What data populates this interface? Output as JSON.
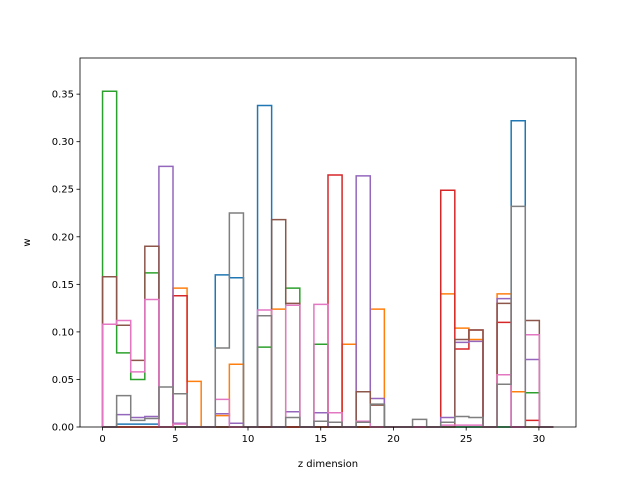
{
  "chart_data": {
    "type": "step-histogram",
    "xlabel": "z dimension",
    "ylabel": "w",
    "xlim": [
      -1.55,
      32.55
    ],
    "ylim": [
      0,
      0.388
    ],
    "x_ticks": [
      0,
      5,
      10,
      15,
      20,
      25,
      30
    ],
    "y_ticks": [
      0.0,
      0.05,
      0.1,
      0.15,
      0.2,
      0.25,
      0.3,
      0.35
    ],
    "y_tick_labels": [
      "0.00",
      "0.05",
      "0.10",
      "0.15",
      "0.20",
      "0.25",
      "0.30",
      "0.35"
    ],
    "bins": 32,
    "grid": false,
    "series": [
      {
        "color": "#1f77b4",
        "values": [
          0,
          0.003,
          0.003,
          0.003,
          0,
          0,
          0,
          0,
          0.16,
          0.157,
          0,
          0.338,
          0,
          0,
          0,
          0,
          0,
          0,
          0,
          0,
          0,
          0,
          0,
          0,
          0,
          0,
          0,
          0,
          0,
          0.322,
          0,
          0
        ]
      },
      {
        "color": "#ff7f0e",
        "values": [
          0,
          0,
          0,
          0,
          0,
          0.146,
          0.048,
          0,
          0.012,
          0.066,
          0,
          0,
          0.124,
          0,
          0,
          0,
          0,
          0.087,
          0,
          0.124,
          0,
          0,
          0,
          0,
          0.14,
          0.104,
          0.092,
          0,
          0.14,
          0.037,
          0,
          0
        ]
      },
      {
        "color": "#2ca02c",
        "values": [
          0.353,
          0.078,
          0.05,
          0.162,
          0,
          0,
          0,
          0,
          0,
          0,
          0,
          0.084,
          0,
          0.146,
          0,
          0.087,
          0,
          0,
          0,
          0,
          0,
          0,
          0,
          0,
          0,
          0,
          0,
          0,
          0,
          0,
          0.036,
          0
        ]
      },
      {
        "color": "#d62728",
        "values": [
          0,
          0,
          0,
          0,
          0,
          0.138,
          0,
          0,
          0,
          0,
          0,
          0,
          0,
          0,
          0,
          0,
          0.265,
          0,
          0,
          0,
          0,
          0,
          0,
          0,
          0.249,
          0.082,
          0.102,
          0,
          0.11,
          0,
          0.007,
          0
        ]
      },
      {
        "color": "#9467bd",
        "values": [
          0,
          0.013,
          0.01,
          0.011,
          0.274,
          0.004,
          0,
          0,
          0.014,
          0.004,
          0,
          0,
          0,
          0.016,
          0,
          0.015,
          0,
          0,
          0.264,
          0.03,
          0,
          0,
          0,
          0,
          0.01,
          0.089,
          0.09,
          0,
          0.135,
          0,
          0.071,
          0
        ]
      },
      {
        "color": "#8c564b",
        "values": [
          0.158,
          0.107,
          0.07,
          0.19,
          0,
          0,
          0,
          0,
          0,
          0,
          0,
          0,
          0.218,
          0.13,
          0,
          0,
          0,
          0,
          0.037,
          0.023,
          0,
          0,
          0,
          0,
          0,
          0.092,
          0.102,
          0,
          0.13,
          0,
          0.112,
          0
        ]
      },
      {
        "color": "#e377c2",
        "values": [
          0.108,
          0.112,
          0.058,
          0.134,
          0,
          0.003,
          0,
          0,
          0.029,
          0,
          0,
          0.123,
          0,
          0.128,
          0,
          0.129,
          0.015,
          0,
          0.006,
          0,
          0,
          0,
          0,
          0,
          0.002,
          0.002,
          0.002,
          0,
          0.055,
          0,
          0.097,
          0
        ]
      },
      {
        "color": "#7f7f7f",
        "values": [
          0,
          0.033,
          0.007,
          0.009,
          0.042,
          0.035,
          0,
          0,
          0.083,
          0.225,
          0,
          0.117,
          0,
          0.01,
          0,
          0.006,
          0.005,
          0,
          0.005,
          0.024,
          0,
          0,
          0.008,
          0,
          0.005,
          0.011,
          0.01,
          0,
          0.045,
          0.232,
          0,
          0
        ]
      }
    ]
  }
}
